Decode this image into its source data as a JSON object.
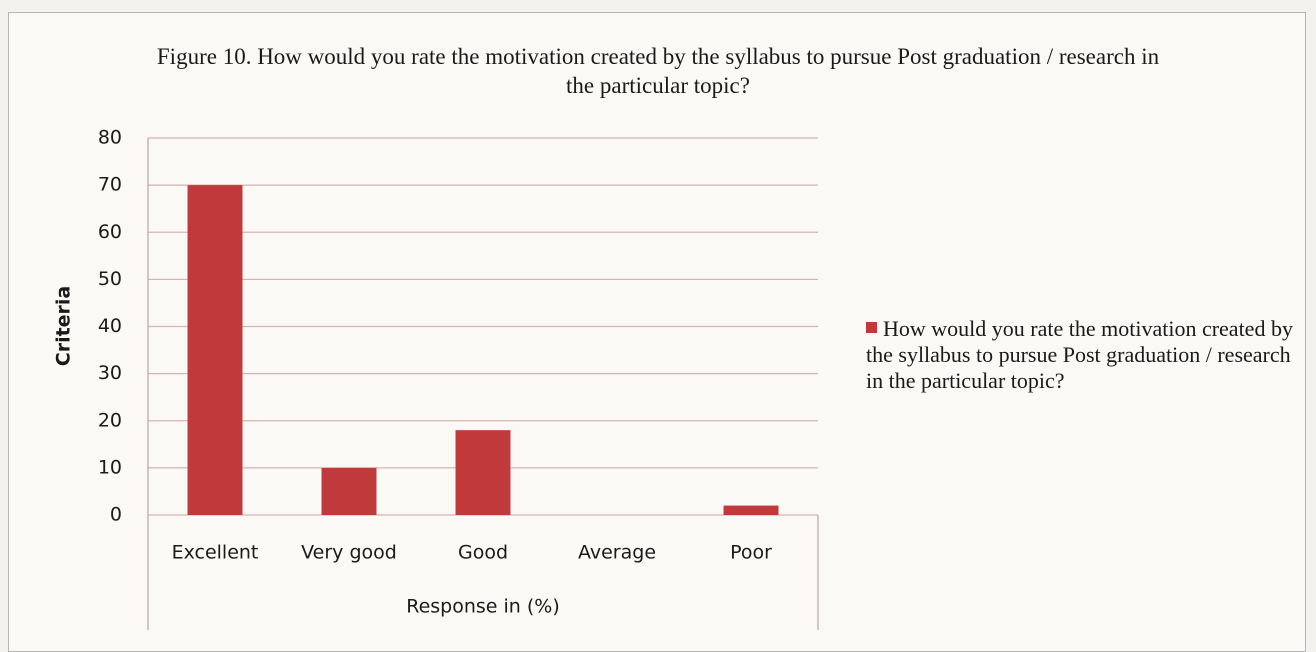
{
  "chart_data": {
    "type": "bar",
    "title": "Figure 10. How would you rate the motivation created by the syllabus to pursue Post graduation / research in the particular topic?",
    "x_label": "Response in (%)",
    "y_label": "Criteria",
    "categories": [
      "Excellent",
      "Very good",
      "Good",
      "Average",
      "Poor"
    ],
    "series": [
      {
        "name": "How would you rate the motivation created by the syllabus to pursue Post graduation / research in the particular topic?",
        "color": "#c0393b",
        "values": [
          70,
          10,
          18,
          0,
          2
        ]
      }
    ],
    "ylim": [
      0,
      80
    ],
    "yticks": [
      0,
      10,
      20,
      30,
      40,
      50,
      60,
      70,
      80
    ],
    "grid": true,
    "legend": "right"
  }
}
